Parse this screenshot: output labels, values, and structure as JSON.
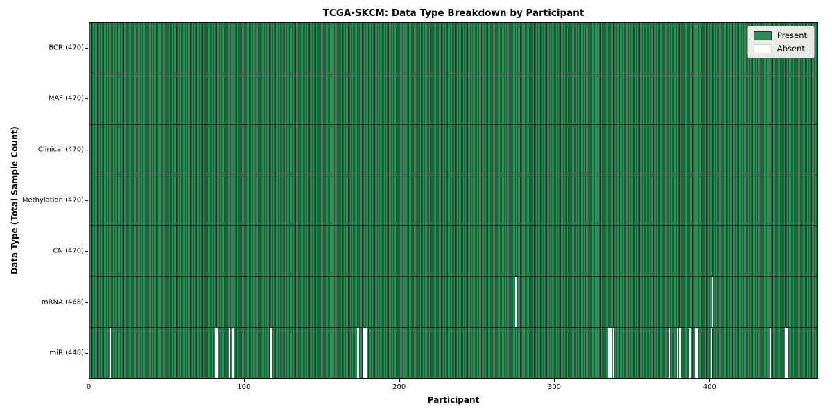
{
  "title": "TCGA-SKCM: Data Type Breakdown by Participant",
  "axes": {
    "xlabel": "Participant",
    "ylabel": "Data Type (Total Sample Count)"
  },
  "legend": {
    "present_label": "Present",
    "absent_label": "Absent"
  },
  "colors": {
    "present": "#2e8b57",
    "absent": "#ffffff",
    "edge": "#163a24"
  },
  "chart_data": {
    "type": "heatmap",
    "title": "TCGA-SKCM: Data Type Breakdown by Participant",
    "xlabel": "Participant",
    "ylabel": "Data Type (Total Sample Count)",
    "x_ticks": [
      0,
      100,
      200,
      300,
      400
    ],
    "x_range": [
      0,
      470
    ],
    "n_participants": 470,
    "grid": false,
    "legend_position": "upper right",
    "legend_entries": [
      {
        "label": "Present",
        "color": "#2e8b57"
      },
      {
        "label": "Absent",
        "color": "#ffffff"
      }
    ],
    "rows": [
      {
        "label": "BCR (470)",
        "data_type": "BCR",
        "total": 470,
        "absent_participants": []
      },
      {
        "label": "MAF (470)",
        "data_type": "MAF",
        "total": 470,
        "absent_participants": []
      },
      {
        "label": "Clinical (470)",
        "data_type": "Clinical",
        "total": 470,
        "absent_participants": []
      },
      {
        "label": "Methylation (470)",
        "data_type": "Methylation",
        "total": 470,
        "absent_participants": []
      },
      {
        "label": "CN (470)",
        "data_type": "CN",
        "total": 470,
        "absent_participants": []
      },
      {
        "label": "mRNA (468)",
        "data_type": "mRNA",
        "total": 468,
        "absent_participants": [
          275,
          402
        ]
      },
      {
        "label": "miR (448)",
        "data_type": "miR",
        "total": 448,
        "absent_participants": [
          13,
          81,
          82,
          90,
          92,
          117,
          173,
          177,
          178,
          335,
          336,
          338,
          374,
          379,
          381,
          387,
          391,
          392,
          401,
          439,
          449,
          450
        ]
      }
    ]
  }
}
